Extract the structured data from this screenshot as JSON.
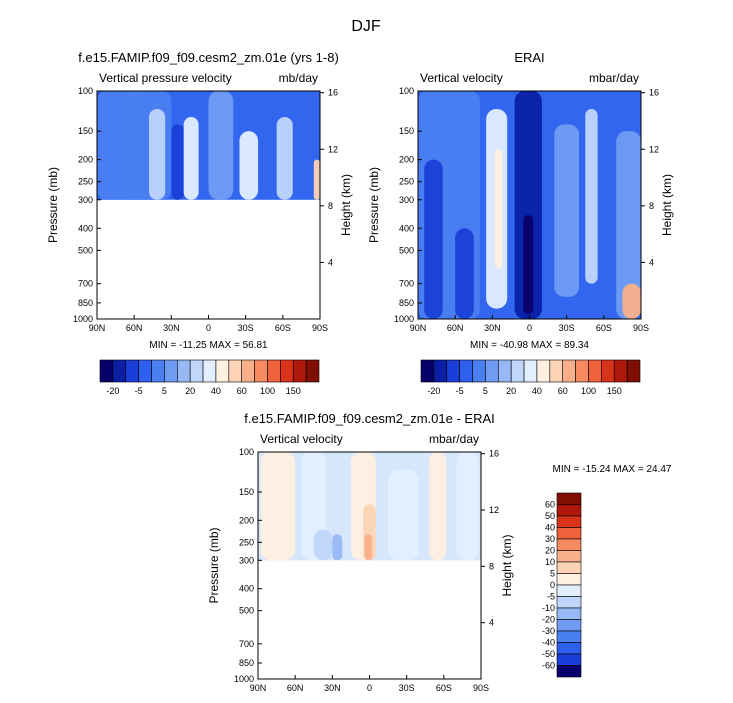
{
  "page_title": "DJF",
  "chart_data": [
    {
      "type": "heatmap",
      "title": "f.e15.FAMIP.f09_f09.cesm2_zm.01e (yrs 1-8)",
      "subtitle_left": "Vertical pressure velocity",
      "subtitle_right": "mb/day",
      "xlabel": "",
      "ylabel": "Pressure (mb)",
      "y2label": "Height (km)",
      "x_ticks": [
        "90N",
        "60N",
        "30N",
        "0",
        "30S",
        "60S",
        "90S"
      ],
      "y_ticks": [
        100,
        150,
        200,
        250,
        300,
        400,
        500,
        700,
        850,
        1000
      ],
      "y2_ticks": [
        16,
        12,
        8,
        4
      ],
      "y_scale": "log",
      "ylim": [
        1000,
        100
      ],
      "data_top_mb": 100,
      "data_bottom_mb": 300,
      "stats": "MIN = -11.25  MAX = 56.81",
      "colorbar_labels": [
        "-20",
        "-5",
        "5",
        "20",
        "40",
        "60",
        "100",
        "150"
      ],
      "colorbar_orientation": "horizontal",
      "fields": [
        {
          "lat": [
            90,
            30
          ],
          "p": [
            100,
            300
          ],
          "level": -5
        },
        {
          "lat": [
            66,
            52
          ],
          "p": [
            100,
            300
          ],
          "level": -8
        },
        {
          "lat": [
            48,
            35
          ],
          "p": [
            120,
            300
          ],
          "level": 2
        },
        {
          "lat": [
            30,
            20
          ],
          "p": [
            140,
            300
          ],
          "level": -15
        },
        {
          "lat": [
            20,
            8
          ],
          "p": [
            130,
            300
          ],
          "level": 4
        },
        {
          "lat": [
            0,
            -20
          ],
          "p": [
            100,
            300
          ],
          "level": -3
        },
        {
          "lat": [
            -25,
            -40
          ],
          "p": [
            150,
            300
          ],
          "level": 3
        },
        {
          "lat": [
            -55,
            -68
          ],
          "p": [
            130,
            300
          ],
          "level": 2
        },
        {
          "lat": [
            -85,
            -90
          ],
          "p": [
            200,
            300
          ],
          "level": 12
        }
      ]
    },
    {
      "type": "heatmap",
      "title": "ERAI",
      "subtitle_left": "Vertical velocity",
      "subtitle_right": "mbar/day",
      "xlabel": "",
      "ylabel": "Pressure (mb)",
      "y2label": "Height (km)",
      "x_ticks": [
        "90N",
        "60N",
        "30N",
        "0",
        "30S",
        "60S",
        "90S"
      ],
      "y_ticks": [
        100,
        150,
        200,
        250,
        300,
        400,
        500,
        700,
        850,
        1000
      ],
      "y2_ticks": [
        16,
        12,
        8,
        4
      ],
      "y_scale": "log",
      "ylim": [
        1000,
        100
      ],
      "data_top_mb": 100,
      "data_bottom_mb": 1000,
      "stats": "MIN = -40.98  MAX = 89.34",
      "colorbar_labels": [
        "-20",
        "-5",
        "5",
        "20",
        "40",
        "60",
        "100",
        "150"
      ],
      "colorbar_orientation": "horizontal",
      "fields": [
        {
          "lat": [
            90,
            40
          ],
          "p": [
            100,
            1000
          ],
          "level": -8
        },
        {
          "lat": [
            85,
            70
          ],
          "p": [
            200,
            1000
          ],
          "level": -15
        },
        {
          "lat": [
            60,
            45
          ],
          "p": [
            400,
            1000
          ],
          "level": -15
        },
        {
          "lat": [
            35,
            18
          ],
          "p": [
            120,
            900
          ],
          "level": 3
        },
        {
          "lat": [
            28,
            22
          ],
          "p": [
            180,
            600
          ],
          "level": 8
        },
        {
          "lat": [
            12,
            -10
          ],
          "p": [
            100,
            1000
          ],
          "level": -22
        },
        {
          "lat": [
            5,
            -3
          ],
          "p": [
            350,
            950
          ],
          "level": -30
        },
        {
          "lat": [
            -20,
            -40
          ],
          "p": [
            140,
            800
          ],
          "level": -3
        },
        {
          "lat": [
            -45,
            -55
          ],
          "p": [
            120,
            700
          ],
          "level": 2
        },
        {
          "lat": [
            -70,
            -90
          ],
          "p": [
            150,
            1000
          ],
          "level": -2
        },
        {
          "lat": [
            -75,
            -90
          ],
          "p": [
            700,
            1000
          ],
          "level": 30
        }
      ]
    },
    {
      "type": "heatmap",
      "title": "f.e15.FAMIP.f09_f09.cesm2_zm.01e - ERAI",
      "subtitle_left": "Vertical velocity",
      "subtitle_right": "mbar/day",
      "xlabel": "",
      "ylabel": "Pressure (mb)",
      "y2label": "Height (km)",
      "x_ticks": [
        "90N",
        "60N",
        "30N",
        "0",
        "30S",
        "60S",
        "90S"
      ],
      "y_ticks": [
        100,
        150,
        200,
        250,
        300,
        400,
        500,
        700,
        850,
        1000
      ],
      "y2_ticks": [
        16,
        12,
        8,
        4
      ],
      "y_scale": "log",
      "ylim": [
        1000,
        100
      ],
      "data_top_mb": 100,
      "data_bottom_mb": 300,
      "stats": "MIN = -15.24  MAX = 24.47",
      "colorbar_labels": [
        "60",
        "50",
        "40",
        "30",
        "20",
        "10",
        "5",
        "0",
        "-5",
        "-10",
        "-20",
        "-30",
        "-40",
        "-50",
        "-60"
      ],
      "colorbar_orientation": "vertical",
      "fields": [
        {
          "lat": [
            88,
            60
          ],
          "p": [
            100,
            300
          ],
          "level": 3
        },
        {
          "lat": [
            55,
            35
          ],
          "p": [
            100,
            300
          ],
          "level": -3
        },
        {
          "lat": [
            45,
            30
          ],
          "p": [
            220,
            300
          ],
          "level": -8
        },
        {
          "lat": [
            30,
            22
          ],
          "p": [
            230,
            300
          ],
          "level": -12
        },
        {
          "lat": [
            15,
            -5
          ],
          "p": [
            100,
            300
          ],
          "level": 3
        },
        {
          "lat": [
            5,
            -5
          ],
          "p": [
            170,
            300
          ],
          "level": 8
        },
        {
          "lat": [
            4,
            -2
          ],
          "p": [
            230,
            300
          ],
          "level": 15
        },
        {
          "lat": [
            -15,
            -40
          ],
          "p": [
            120,
            300
          ],
          "level": -3
        },
        {
          "lat": [
            -48,
            -62
          ],
          "p": [
            100,
            300
          ],
          "level": 3
        },
        {
          "lat": [
            -70,
            -88
          ],
          "p": [
            100,
            300
          ],
          "level": -3
        }
      ]
    }
  ],
  "palette_horizontal": [
    "#08006a",
    "#0a1fa5",
    "#1a3fd8",
    "#2e5fee",
    "#4a7ff0",
    "#6f9cf2",
    "#97b8f4",
    "#c0d6fa",
    "#e3efff",
    "#fff0e0",
    "#fcd3b4",
    "#f9b08a",
    "#f68b62",
    "#ef623c",
    "#d9331a",
    "#b0170b",
    "#7f0e03"
  ],
  "palette_vertical": [
    "#7f0e03",
    "#b0170b",
    "#d9331a",
    "#ef623c",
    "#f68b62",
    "#f9b08a",
    "#fcd3b4",
    "#fff0e0",
    "#e3efff",
    "#c0d6fa",
    "#97b8f4",
    "#6f9cf2",
    "#4a7ff0",
    "#2e5fee",
    "#1a3fd8",
    "#08006a"
  ]
}
